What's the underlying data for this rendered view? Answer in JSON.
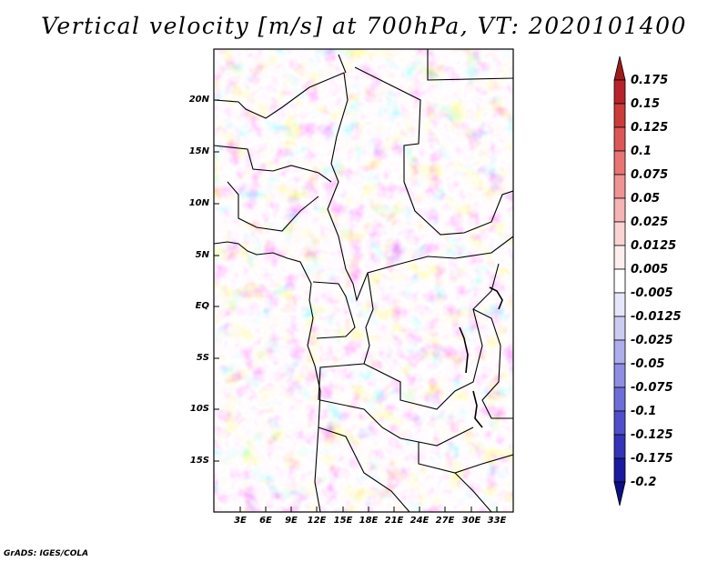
{
  "title": "Vertical velocity [m/s] at 700hPa, VT: 2020101400",
  "credit": "GrADS: IGES/COLA",
  "chart_data": {
    "type": "heatmap",
    "variable": "Vertical velocity",
    "units": "m/s",
    "level": "700hPa",
    "valid_time": "2020101400",
    "lon_range": [
      0,
      35
    ],
    "lat_range": [
      -20,
      24
    ],
    "lat_labels": [
      "20N",
      "15N",
      "10N",
      "5N",
      "EQ",
      "5S",
      "10S",
      "15S"
    ],
    "lon_labels": [
      "3E",
      "6E",
      "9E",
      "12E",
      "15E",
      "18E",
      "21E",
      "24E",
      "27E",
      "30E",
      "33E"
    ],
    "colorbar": {
      "levels": [
        "0.175",
        "0.15",
        "0.125",
        "0.1",
        "0.075",
        "0.05",
        "0.025",
        "0.0125",
        "0.005",
        "-0.005",
        "-0.0125",
        "-0.025",
        "-0.05",
        "-0.075",
        "-0.1",
        "-0.125",
        "-0.175",
        "-0.2"
      ],
      "colors": [
        "#a01a1a",
        "#b8232b",
        "#cd3b3b",
        "#dd5757",
        "#e87474",
        "#f09393",
        "#f6b4b4",
        "#fad3d3",
        "#fdeeee",
        "#ffffff",
        "#e6e6fa",
        "#ccccf3",
        "#aeaeec",
        "#8e8ee2",
        "#6e6ed8",
        "#4f4fcc",
        "#3434b8",
        "#1a1aa0",
        "#0e0e84"
      ]
    }
  }
}
